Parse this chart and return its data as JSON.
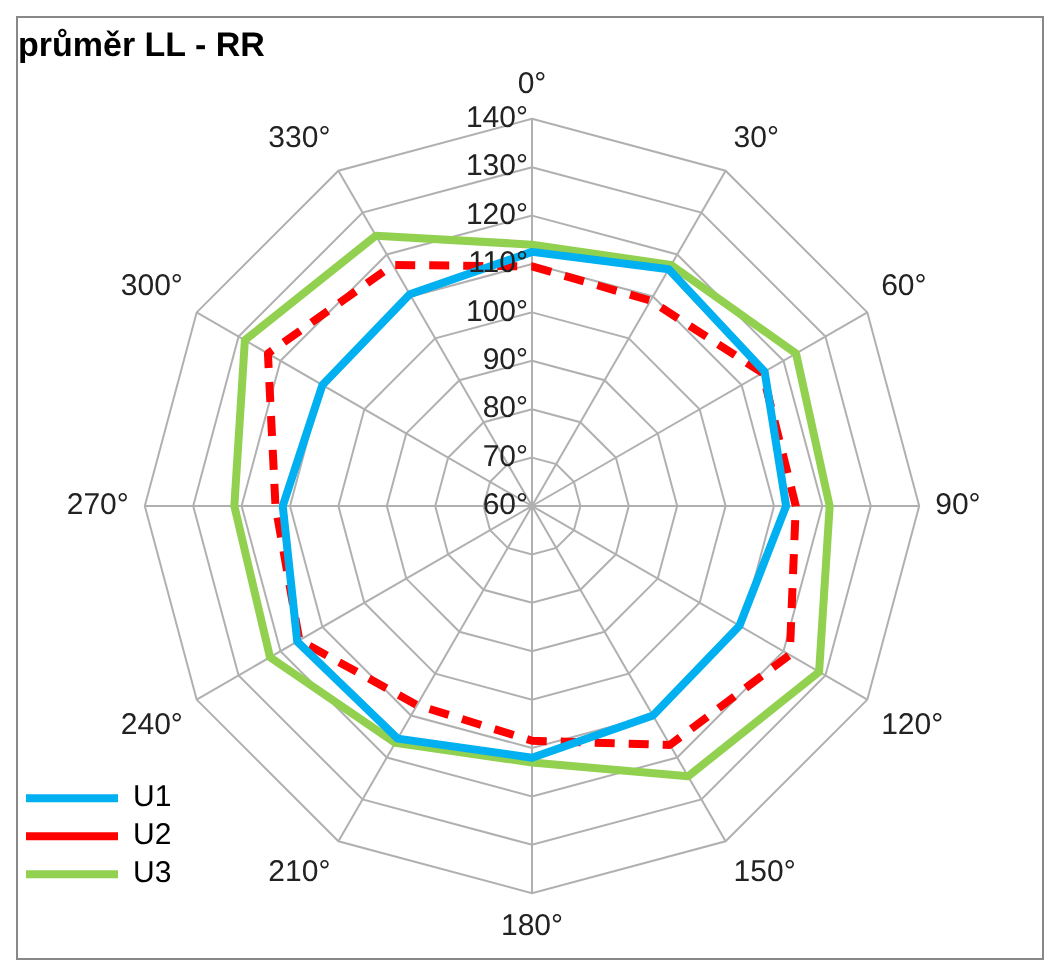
{
  "chart_data": {
    "type": "radar",
    "title": "průměr LL - RR",
    "categories": [
      "0°",
      "30°",
      "60°",
      "90°",
      "120°",
      "150°",
      "180°",
      "210°",
      "240°",
      "270°",
      "300°",
      "330°"
    ],
    "ylim": [
      60,
      140
    ],
    "yticks": [
      {
        "value": 60,
        "label": "60°"
      },
      {
        "value": 70,
        "label": "70°"
      },
      {
        "value": 80,
        "label": "80°"
      },
      {
        "value": 90,
        "label": "90°"
      },
      {
        "value": 100,
        "label": "100°"
      },
      {
        "value": 110,
        "label": "110°"
      },
      {
        "value": 120,
        "label": "120°"
      },
      {
        "value": 130,
        "label": "130°"
      },
      {
        "value": 140,
        "label": "140°"
      }
    ],
    "grid": true,
    "legend": "bottom left",
    "marker": "none",
    "series": [
      {
        "name": "U1",
        "color": "#00b0f0",
        "line_style": "solid",
        "values": [
          112.5,
          116.5,
          115.5,
          112.5,
          109.5,
          110,
          112,
          115.5,
          116,
          111.5,
          110,
          110.5
        ]
      },
      {
        "name": "U2",
        "color": "#ff0000",
        "line_style": "dashed",
        "values": [
          109.5,
          109,
          115,
          114.5,
          121.5,
          117,
          108.5,
          107.5,
          115.5,
          113,
          123,
          117.5
        ]
      },
      {
        "name": "U3",
        "color": "#92d050",
        "line_style": "solid",
        "values": [
          114,
          117.5,
          123,
          121.5,
          128.5,
          124.5,
          113,
          116.5,
          122.5,
          121.5,
          128.5,
          124.5
        ]
      }
    ]
  }
}
